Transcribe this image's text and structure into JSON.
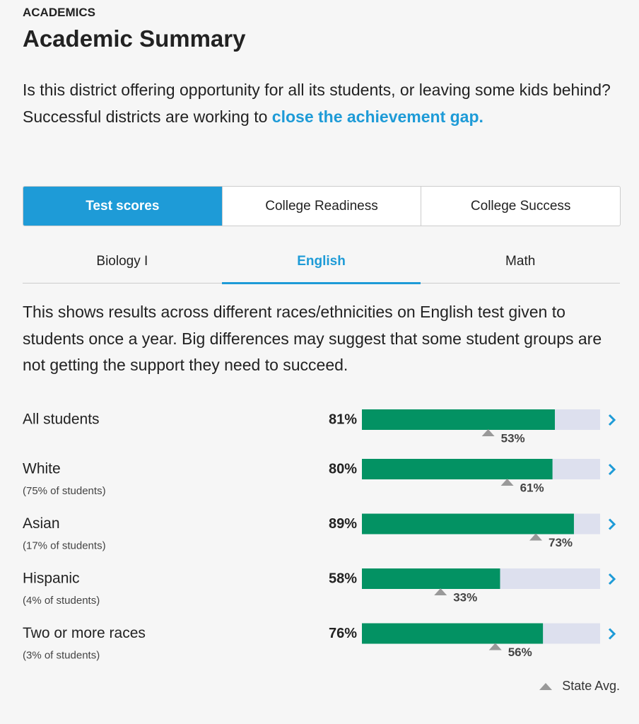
{
  "header": {
    "eyebrow": "ACADEMICS",
    "title": "Academic Summary"
  },
  "intro": {
    "text": "Is this district offering opportunity for all its students, or leaving some kids behind? Successful districts are working to ",
    "link": "close the achievement gap."
  },
  "tabs": [
    "Test scores",
    "College Readiness",
    "College Success"
  ],
  "active_tab": 0,
  "subjects": [
    "Biology I",
    "English",
    "Math"
  ],
  "active_subject": 1,
  "description": "This shows results across different races/ethnicities on English test given to students once a year. Big differences may suggest that some student groups are not getting the support they need to succeed.",
  "scale": [
    0,
    100
  ],
  "rows": [
    {
      "group": "All students",
      "score": 81,
      "score_label": "81%",
      "state_avg": 53,
      "state_avg_label": "53%"
    },
    {
      "group": "White",
      "share": "(75% of students)",
      "score": 80,
      "score_label": "80%",
      "state_avg": 61,
      "state_avg_label": "61%"
    },
    {
      "group": "Asian",
      "share": "(17% of students)",
      "score": 89,
      "score_label": "89%",
      "state_avg": 73,
      "state_avg_label": "73%"
    },
    {
      "group": "Hispanic",
      "share": "(4% of students)",
      "score": 58,
      "score_label": "58%",
      "state_avg": 33,
      "state_avg_label": "33%"
    },
    {
      "group": "Two or more races",
      "share": "(3% of students)",
      "score": 76,
      "score_label": "76%",
      "state_avg": 56,
      "state_avg_label": "56%"
    }
  ],
  "legend": "State Avg."
}
